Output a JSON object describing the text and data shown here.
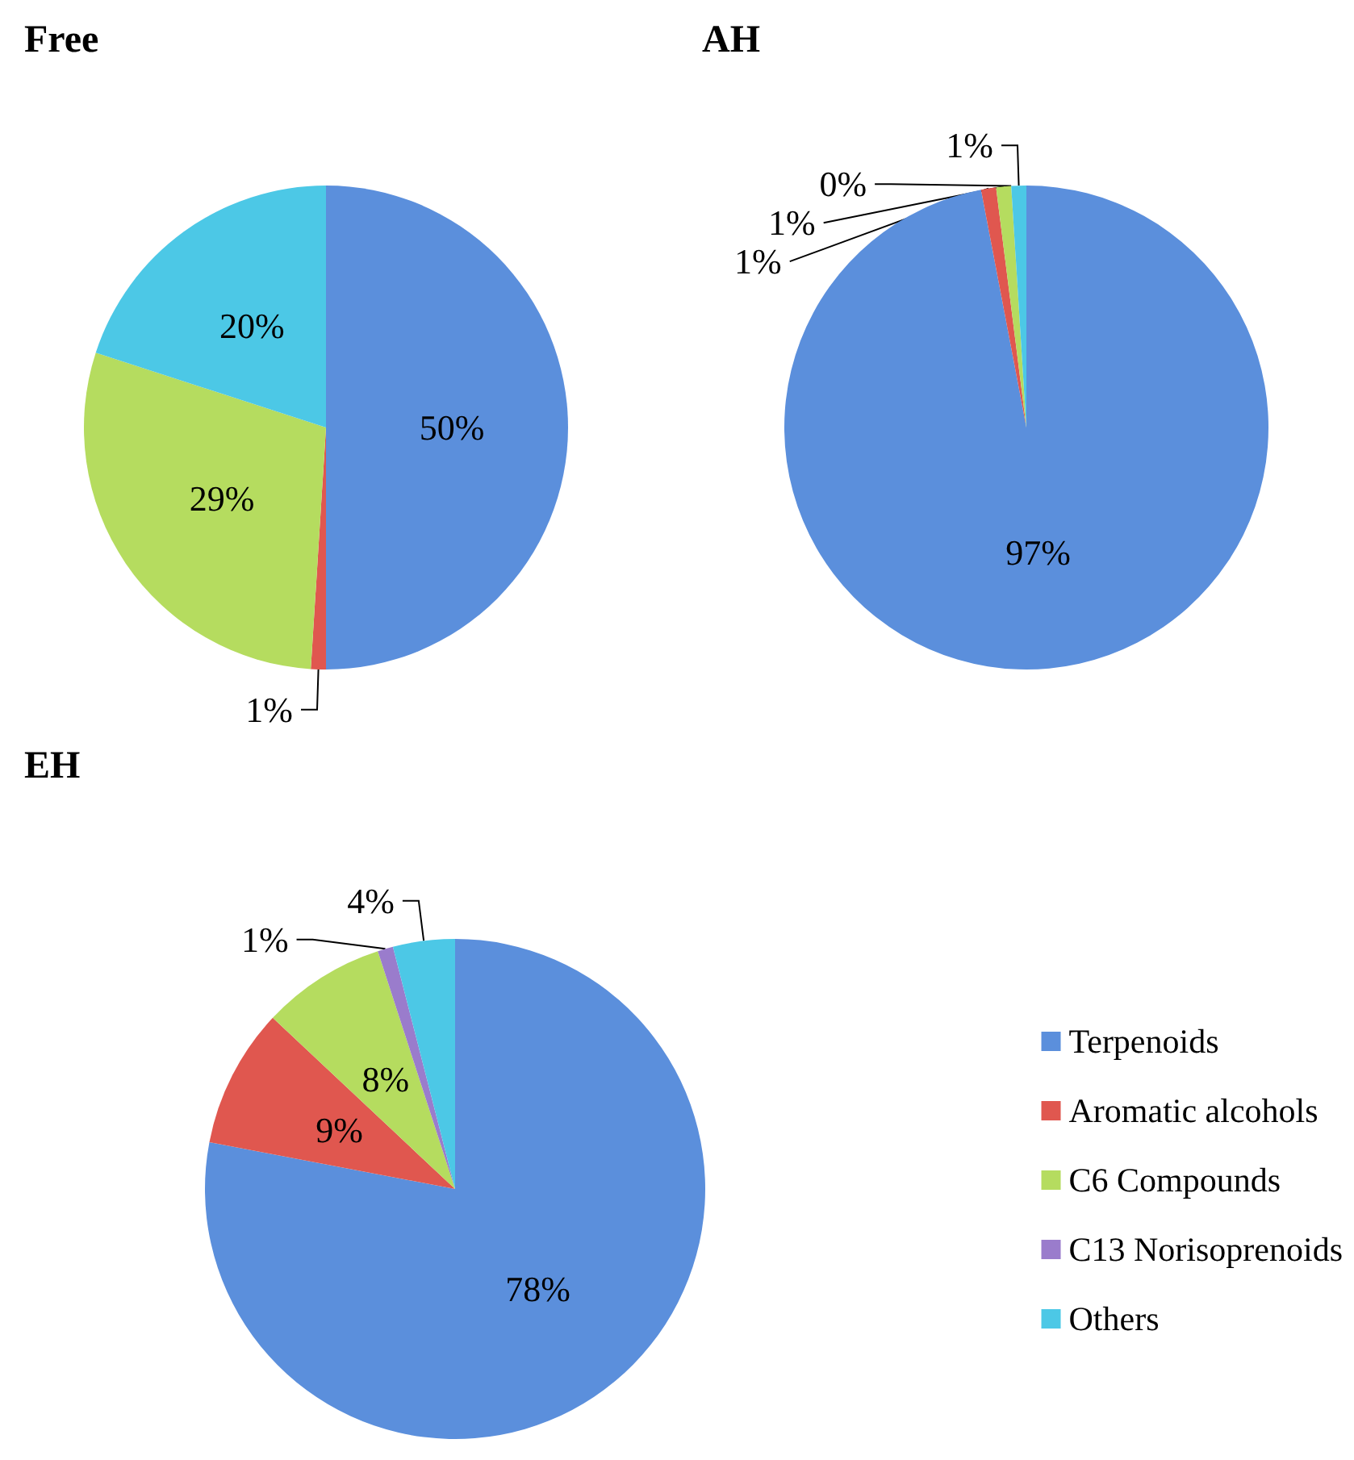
{
  "chart_data": [
    {
      "type": "pie",
      "title": "Free",
      "categories": [
        null,
        null,
        null,
        null
      ],
      "values": [
        50,
        1,
        29,
        20
      ],
      "value_labels": [
        "50%",
        "1%",
        "29%",
        "20%"
      ],
      "colors": [
        "#5b8fdc",
        "#e0574f",
        "#b5dc5f",
        "#4cc8e6"
      ],
      "legend": false
    },
    {
      "type": "pie",
      "title": "AH",
      "categories": [
        null,
        null,
        null,
        null,
        null
      ],
      "values": [
        97,
        1,
        1,
        0,
        1
      ],
      "value_labels": [
        "97%",
        "1%",
        "1%",
        "0%",
        "1%"
      ],
      "colors": [
        "#5b8fdc",
        "#e0574f",
        "#b5dc5f",
        "#9a7ccc",
        "#4cc8e6"
      ],
      "legend": false
    },
    {
      "type": "pie",
      "title": "EH",
      "categories": [
        "Terpenoids",
        "Aromatic alcohols",
        "C6 Compounds",
        "C13 Norisoprenoids",
        "Others"
      ],
      "values": [
        78,
        9,
        8,
        1,
        4
      ],
      "value_labels": [
        "78%",
        "9%",
        "8%",
        "1%",
        "4%"
      ],
      "colors": [
        "#5b8fdc",
        "#e0574f",
        "#b5dc5f",
        "#9a7ccc",
        "#4cc8e6"
      ],
      "legend": "right"
    }
  ]
}
